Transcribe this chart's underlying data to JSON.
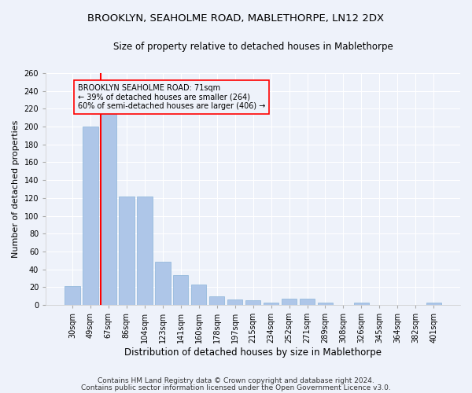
{
  "title1": "BROOKLYN, SEAHOLME ROAD, MABLETHORPE, LN12 2DX",
  "title2": "Size of property relative to detached houses in Mablethorpe",
  "xlabel": "Distribution of detached houses by size in Mablethorpe",
  "ylabel": "Number of detached properties",
  "categories": [
    "30sqm",
    "49sqm",
    "67sqm",
    "86sqm",
    "104sqm",
    "123sqm",
    "141sqm",
    "160sqm",
    "178sqm",
    "197sqm",
    "215sqm",
    "234sqm",
    "252sqm",
    "271sqm",
    "289sqm",
    "308sqm",
    "326sqm",
    "345sqm",
    "364sqm",
    "382sqm",
    "401sqm"
  ],
  "values": [
    21,
    200,
    215,
    122,
    122,
    48,
    33,
    23,
    10,
    6,
    5,
    3,
    7,
    7,
    3,
    0,
    3,
    0,
    0,
    0,
    3
  ],
  "bar_color": "#aec6e8",
  "bar_edge_color": "#8ab4d8",
  "vline_color": "red",
  "vline_x_index": 2,
  "annotation_line1": "BROOKLYN SEAHOLME ROAD: 71sqm",
  "annotation_line2": "← 39% of detached houses are smaller (264)",
  "annotation_line3": "60% of semi-detached houses are larger (406) →",
  "ylim": [
    0,
    260
  ],
  "yticks": [
    0,
    20,
    40,
    60,
    80,
    100,
    120,
    140,
    160,
    180,
    200,
    220,
    240,
    260
  ],
  "footer1": "Contains HM Land Registry data © Crown copyright and database right 2024.",
  "footer2": "Contains public sector information licensed under the Open Government Licence v3.0.",
  "background_color": "#eef2fa",
  "grid_color": "#ffffff",
  "title1_fontsize": 9.5,
  "title2_fontsize": 8.5,
  "xlabel_fontsize": 8.5,
  "ylabel_fontsize": 8,
  "tick_fontsize": 7,
  "annotation_fontsize": 7,
  "footer_fontsize": 6.5
}
